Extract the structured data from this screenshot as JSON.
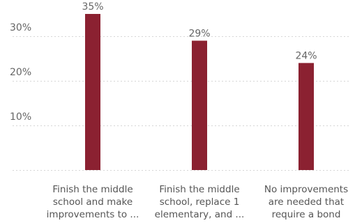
{
  "colors": {
    "bar": "#8b2131",
    "grid": "#d6d6d6",
    "text": "#666666"
  },
  "chart_data": {
    "type": "bar",
    "categories": [
      [
        "Finish the middle",
        "school and make",
        "improvements to ..."
      ],
      [
        "Finish the middle",
        "school, replace 1",
        "elementary, and ..."
      ],
      [
        "No improvements",
        "are needed that",
        "require a bond"
      ]
    ],
    "values": [
      35,
      29,
      24
    ],
    "data_labels": [
      "35%",
      "29%",
      "24%"
    ],
    "y_ticks": [
      {
        "value": 10,
        "label": "10%"
      },
      {
        "value": 20,
        "label": "20%"
      },
      {
        "value": 30,
        "label": "30%"
      }
    ],
    "ylim": [
      0,
      40
    ],
    "grid": true,
    "title": "",
    "xlabel": "",
    "ylabel": ""
  }
}
